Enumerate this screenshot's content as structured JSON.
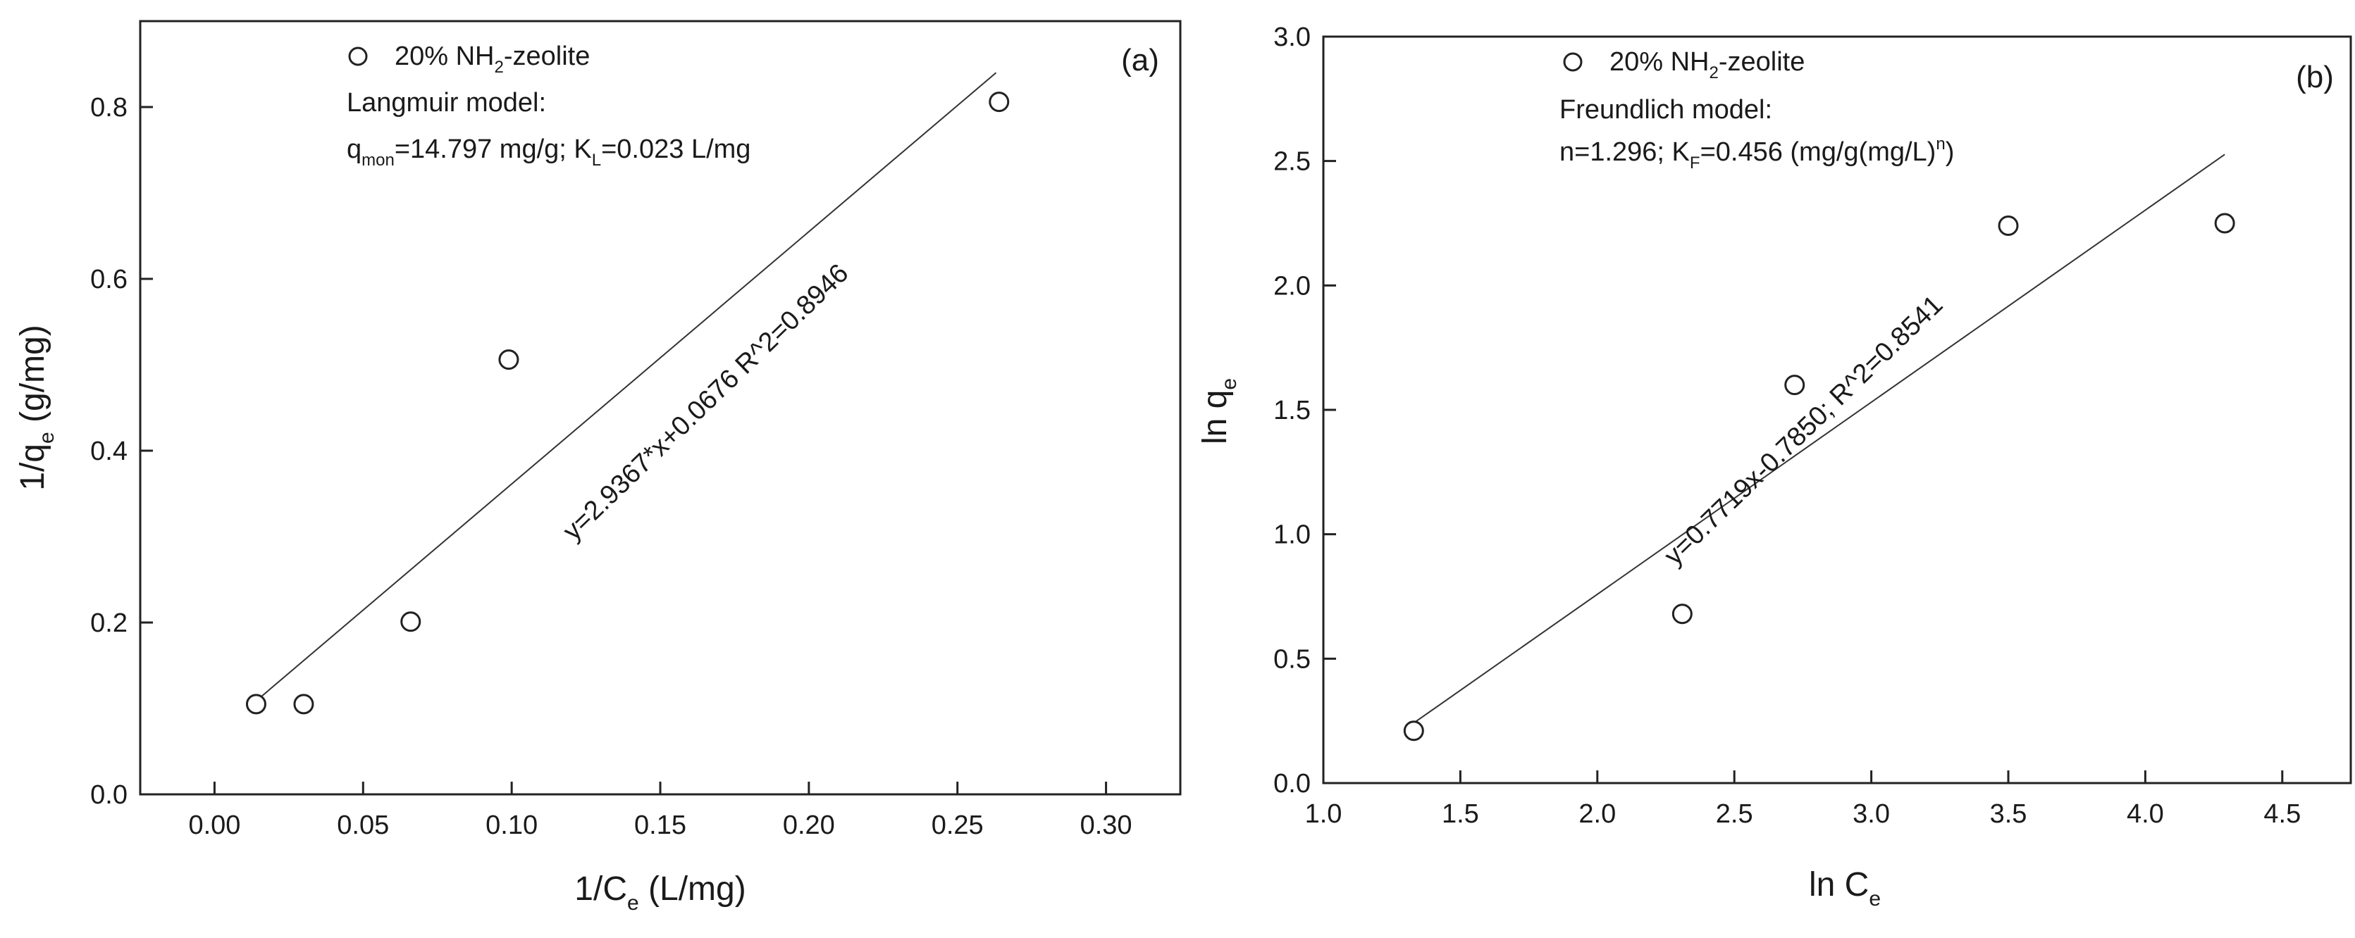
{
  "chart_data": [
    {
      "type": "scatter",
      "panel_label": "(a)",
      "xlabel": {
        "main": "1/C",
        "sub": "e",
        "tail": " (L/mg)"
      },
      "ylabel": {
        "main": "1/q",
        "sub": "e",
        "tail": " (g/mg)"
      },
      "xlim": [
        -0.025,
        0.325
      ],
      "ylim": [
        0.0,
        0.9
      ],
      "xticks": [
        0.0,
        0.05,
        0.1,
        0.15,
        0.2,
        0.25,
        0.3
      ],
      "xtick_labels": [
        "0.00",
        "0.05",
        "0.10",
        "0.15",
        "0.20",
        "0.25",
        "0.30"
      ],
      "yticks": [
        0.0,
        0.2,
        0.4,
        0.6,
        0.8
      ],
      "ytick_labels": [
        "0.0",
        "0.2",
        "0.4",
        "0.6",
        "0.8"
      ],
      "grid": false,
      "legend": {
        "position": "top-left",
        "marker": "open-circle",
        "label": {
          "main": "20% NH",
          "sub": "2",
          "tail": "-zeolite"
        }
      },
      "annotations": [
        {
          "kind": "plain",
          "text": "Langmuir model:"
        },
        {
          "kind": "qmon",
          "p1": "q",
          "s1": "mon",
          "p2": "=14.797 mg/g; K",
          "s2": "L",
          "p3": "=0.023 L/mg"
        }
      ],
      "fit_label": "y=2.9367*x+0.0676 R^2=0.8946",
      "series": [
        {
          "points": [
            [
              0.014,
              0.105
            ],
            [
              0.03,
              0.105
            ],
            [
              0.066,
              0.201
            ],
            [
              0.099,
              0.506
            ],
            [
              0.264,
              0.806
            ]
          ]
        }
      ],
      "fit": {
        "slope": 2.9367,
        "intercept": 0.0676,
        "x_range": [
          0.012,
          0.263
        ]
      }
    },
    {
      "type": "scatter",
      "panel_label": "(b)",
      "xlabel": {
        "main": "ln C",
        "sub": "e",
        "tail": ""
      },
      "ylabel": {
        "main": "ln q",
        "sub": "e",
        "tail": ""
      },
      "xlim": [
        1.0,
        4.75
      ],
      "ylim": [
        0.0,
        3.0
      ],
      "xticks": [
        1.0,
        1.5,
        2.0,
        2.5,
        3.0,
        3.5,
        4.0,
        4.5
      ],
      "xtick_labels": [
        "1.0",
        "1.5",
        "2.0",
        "2.5",
        "3.0",
        "3.5",
        "4.0",
        "4.5"
      ],
      "yticks": [
        0.0,
        0.5,
        1.0,
        1.5,
        2.0,
        2.5,
        3.0
      ],
      "ytick_labels": [
        "0.0",
        "0.5",
        "1.0",
        "1.5",
        "2.0",
        "2.5",
        "3.0"
      ],
      "grid": false,
      "legend": {
        "position": "top-left",
        "marker": "open-circle",
        "label": {
          "main": "20% NH",
          "sub": "2",
          "tail": "-zeolite"
        }
      },
      "annotations": [
        {
          "kind": "plain",
          "text": "Freundlich model:"
        },
        {
          "kind": "nkf",
          "p1": "n=1.296; K",
          "s1": "F",
          "p2": "=0.456 (mg/g(mg/L)",
          "sup": "n",
          "p3": ")"
        }
      ],
      "fit_label": "y=0.7719x-0.7850; R^2=0.8541",
      "series": [
        {
          "points": [
            [
              1.33,
              0.21
            ],
            [
              2.31,
              0.68
            ],
            [
              2.72,
              1.6
            ],
            [
              3.5,
              2.24
            ],
            [
              4.29,
              2.25
            ]
          ]
        }
      ],
      "fit": {
        "slope": 0.7719,
        "intercept": -0.785,
        "x_range": [
          1.33,
          4.29
        ]
      }
    }
  ]
}
